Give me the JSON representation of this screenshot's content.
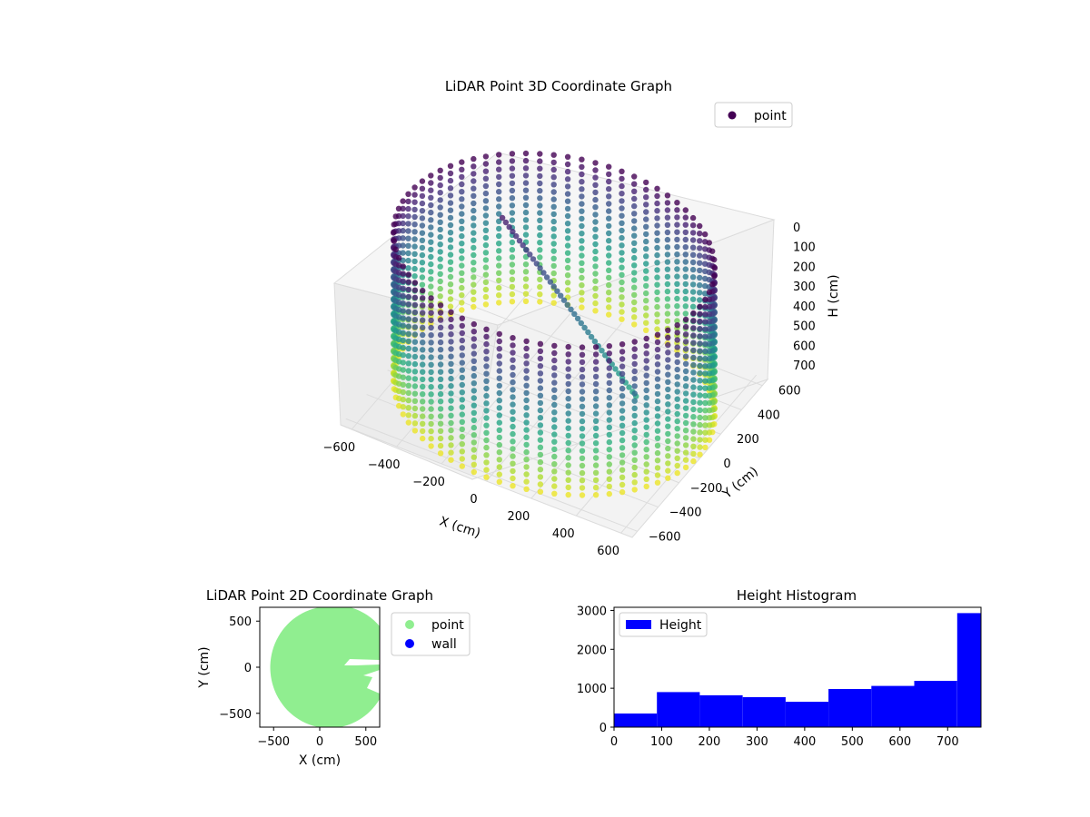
{
  "chart_data": [
    {
      "type": "scatter",
      "title": "LiDAR Point 3D Coordinate Graph",
      "xlabel": "X (cm)",
      "ylabel": "Y (cm)",
      "zlabel": "H (cm)",
      "x_ticks": [
        -600,
        -400,
        -200,
        0,
        200,
        400,
        600
      ],
      "y_ticks": [
        -600,
        -400,
        -200,
        0,
        200,
        400,
        600
      ],
      "z_ticks": [
        0,
        100,
        200,
        300,
        400,
        500,
        600,
        700
      ],
      "xlim": [
        -650,
        650
      ],
      "ylim": [
        -650,
        650
      ],
      "zlim": [
        780,
        0
      ],
      "z_inverted": true,
      "colormap": "viridis",
      "legend": {
        "entries": [
          {
            "name": "point",
            "color": "#440154"
          }
        ],
        "placement": "top-right"
      },
      "grid": true,
      "shape": "cylindrical wall of points, radius ~650 cm, heights 0-780 cm, with a diagonal cluster of points inside"
    },
    {
      "type": "scatter",
      "title": "LiDAR Point 2D Coordinate Graph",
      "xlabel": "X (cm)",
      "ylabel": "Y (cm)",
      "x_ticks": [
        -500,
        0,
        500
      ],
      "y_ticks": [
        500,
        0,
        -500
      ],
      "xlim": [
        -650,
        650
      ],
      "ylim": [
        -650,
        650
      ],
      "series": [
        {
          "name": "point",
          "color": "#90ee90"
        },
        {
          "name": "wall",
          "color": "#0000ff"
        }
      ],
      "legend": {
        "placement": "outside-right"
      }
    },
    {
      "type": "bar",
      "title": "Height Histogram",
      "series": [
        {
          "name": "Height",
          "color": "#0000ff"
        }
      ],
      "bin_edges": [
        0,
        90,
        180,
        270,
        360,
        450,
        540,
        630,
        720,
        770
      ],
      "values": [
        350,
        900,
        820,
        770,
        650,
        980,
        1060,
        1190,
        2930
      ],
      "x_ticks": [
        0,
        100,
        200,
        300,
        400,
        500,
        600,
        700
      ],
      "y_ticks": [
        0,
        1000,
        2000,
        3000
      ],
      "xlim": [
        0,
        770
      ],
      "ylim": [
        0,
        3080
      ],
      "legend": {
        "placement": "top-left"
      }
    }
  ]
}
